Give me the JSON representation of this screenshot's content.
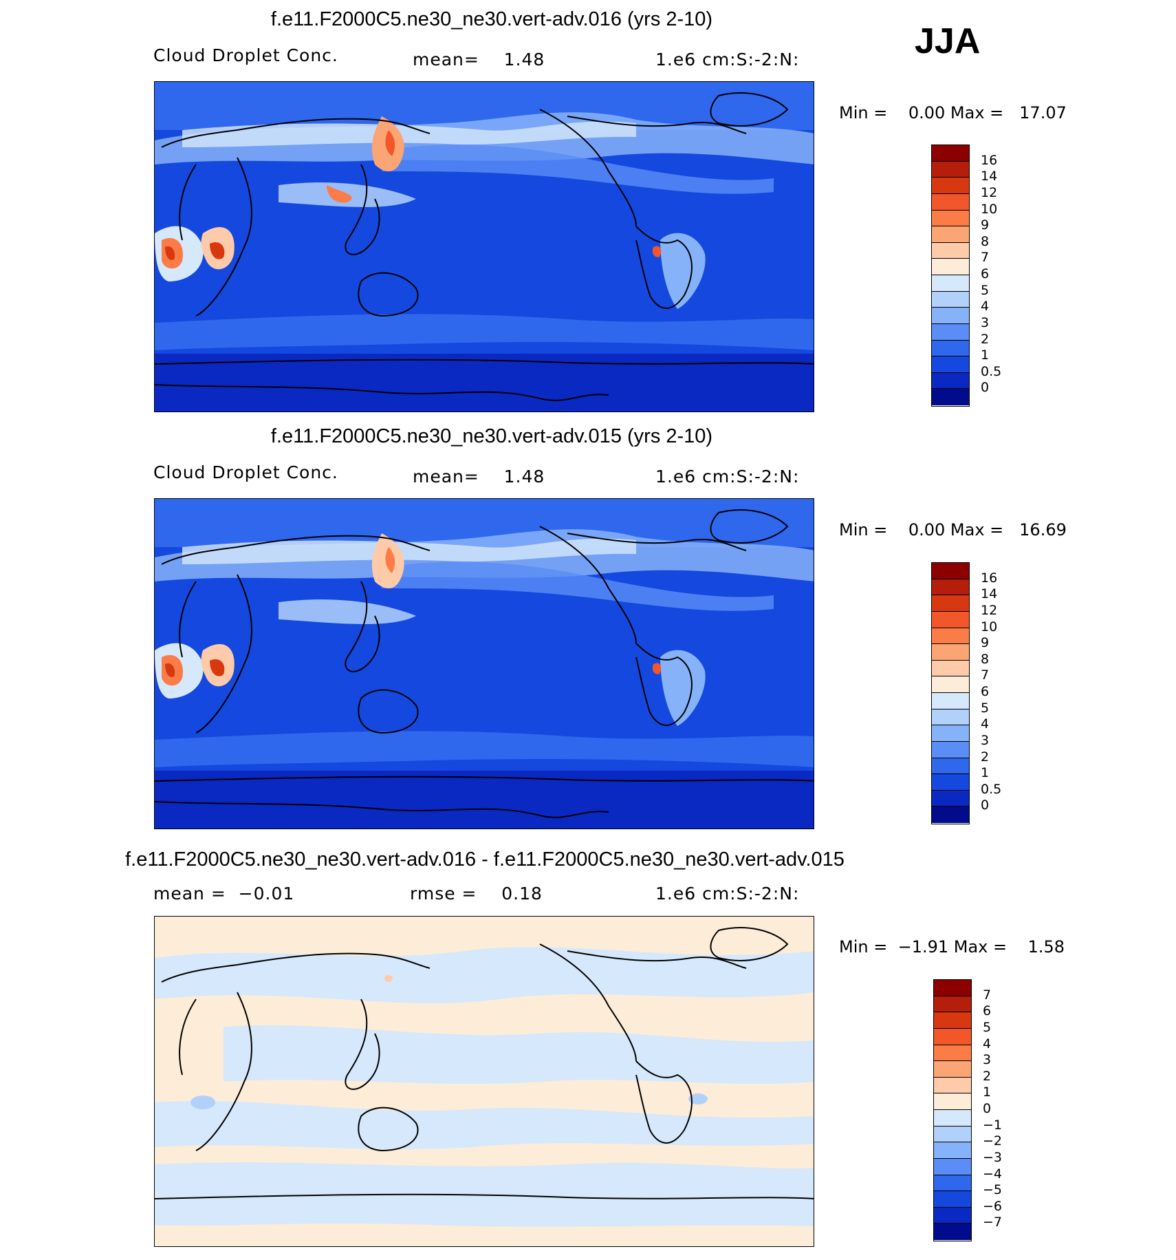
{
  "season": "JJA",
  "panels": [
    {
      "title": "f.e11.F2000C5.ne30_ne30.vert-adv.016 (yrs 2-10)",
      "left_label": "Cloud Droplet Conc.",
      "middle_label": "mean=    1.48",
      "right_label": "1.e6 cm:S:-2:N:",
      "min_max": "Min =    0.00 Max =   17.07",
      "colorbar": {
        "labels": [
          "16",
          "14",
          "12",
          "10",
          "9",
          "8",
          "7",
          "6",
          "5",
          "4",
          "3",
          "2",
          "1",
          "0.5",
          "0"
        ],
        "colors": [
          "#8c0000",
          "#b41e0a",
          "#d8380f",
          "#f2572a",
          "#fb7c47",
          "#fca574",
          "#fdcbaa",
          "#fdecd8",
          "#d6e8fb",
          "#b1d1fb",
          "#86b2f9",
          "#5a8df5",
          "#2f67ed",
          "#1448de",
          "#0a28c2",
          "#000c8c"
        ]
      }
    },
    {
      "title": "f.e11.F2000C5.ne30_ne30.vert-adv.015 (yrs 2-10)",
      "left_label": "Cloud Droplet Conc.",
      "middle_label": "mean=    1.48",
      "right_label": "1.e6 cm:S:-2:N:",
      "min_max": "Min =    0.00 Max =   16.69",
      "colorbar": {
        "labels": [
          "16",
          "14",
          "12",
          "10",
          "9",
          "8",
          "7",
          "6",
          "5",
          "4",
          "3",
          "2",
          "1",
          "0.5",
          "0"
        ],
        "colors": [
          "#8c0000",
          "#b41e0a",
          "#d8380f",
          "#f2572a",
          "#fb7c47",
          "#fca574",
          "#fdcbaa",
          "#fdecd8",
          "#d6e8fb",
          "#b1d1fb",
          "#86b2f9",
          "#5a8df5",
          "#2f67ed",
          "#1448de",
          "#0a28c2",
          "#000c8c"
        ]
      }
    },
    {
      "title": "f.e11.F2000C5.ne30_ne30.vert-adv.016 - f.e11.F2000C5.ne30_ne30.vert-adv.015",
      "left_label": "mean =  −0.01",
      "middle_label": "rmse =    0.18",
      "right_label": "1.e6 cm:S:-2:N:",
      "min_max": "Min =  −1.91 Max =    1.58",
      "colorbar": {
        "labels": [
          "7",
          "6",
          "5",
          "4",
          "3",
          "2",
          "1",
          "0",
          "−1",
          "−2",
          "−3",
          "−4",
          "−5",
          "−6",
          "−7"
        ],
        "colors": [
          "#8c0000",
          "#b41e0a",
          "#d8380f",
          "#f2572a",
          "#fb7c47",
          "#fca574",
          "#fdcbaa",
          "#fdecd8",
          "#d6e8fb",
          "#b1d1fb",
          "#86b2f9",
          "#5a8df5",
          "#2f67ed",
          "#1448de",
          "#0a28c2",
          "#000c8c"
        ]
      }
    }
  ]
}
